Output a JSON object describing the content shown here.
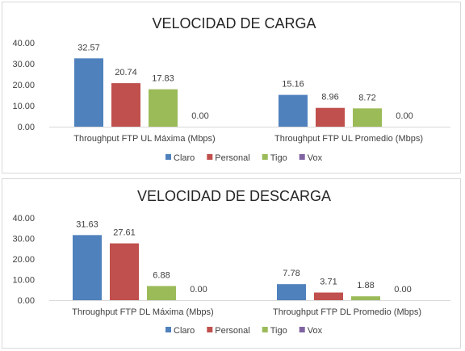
{
  "chart_data": [
    {
      "type": "bar",
      "title": "VELOCIDAD DE CARGA",
      "categories": [
        "Throughput FTP UL Máxima (Mbps)",
        "Throughput FTP UL Promedio (Mbps)"
      ],
      "series": [
        {
          "name": "Claro",
          "color": "#4f81bd",
          "values": [
            32.57,
            15.16
          ]
        },
        {
          "name": "Personal",
          "color": "#c0504d",
          "values": [
            20.74,
            8.96
          ]
        },
        {
          "name": "Tigo",
          "color": "#9bbb59",
          "values": [
            17.83,
            8.72
          ]
        },
        {
          "name": "Vox",
          "color": "#8064a2",
          "values": [
            0.0,
            0.0
          ]
        }
      ],
      "data_labels": [
        [
          "32.57",
          "15.16"
        ],
        [
          "20.74",
          "8.96"
        ],
        [
          "17.83",
          "8.72"
        ],
        [
          "0.00",
          "0.00"
        ]
      ],
      "yticks": [
        "0.00",
        "10.00",
        "20.00",
        "30.00",
        "40.00"
      ],
      "ylim": [
        0,
        40
      ],
      "grid": false,
      "legend": "bottom"
    },
    {
      "type": "bar",
      "title": "VELOCIDAD DE DESCARGA",
      "categories": [
        "Throughput FTP DL Máxima (Mbps)",
        "Throughput FTP DL Promedio (Mbps)"
      ],
      "series": [
        {
          "name": "Claro",
          "color": "#4f81bd",
          "values": [
            31.63,
            7.78
          ]
        },
        {
          "name": "Personal",
          "color": "#c0504d",
          "values": [
            27.61,
            3.71
          ]
        },
        {
          "name": "Tigo",
          "color": "#9bbb59",
          "values": [
            6.88,
            1.88
          ]
        },
        {
          "name": "Vox",
          "color": "#8064a2",
          "values": [
            0.0,
            0.0
          ]
        }
      ],
      "data_labels": [
        [
          "31.63",
          "7.78"
        ],
        [
          "27.61",
          "3.71"
        ],
        [
          "6.88",
          "1.88"
        ],
        [
          "0.00",
          "0.00"
        ]
      ],
      "yticks": [
        "0.00",
        "10.00",
        "20.00",
        "30.00",
        "40.00"
      ],
      "ylim": [
        0,
        40
      ],
      "grid": false,
      "legend": "bottom"
    }
  ]
}
